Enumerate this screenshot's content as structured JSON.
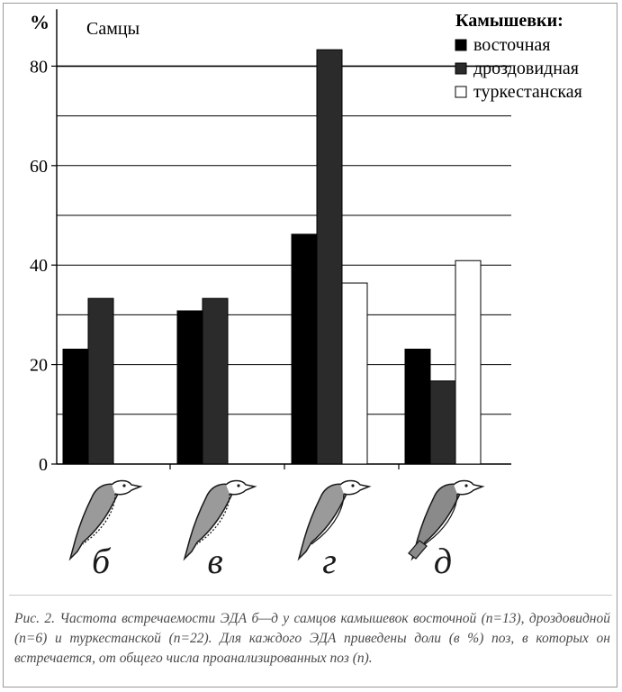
{
  "chart_data": {
    "type": "bar",
    "ylabel": "%",
    "subtitle": "Самцы",
    "legend_title": "Камышевки:",
    "legend_position": "top-right",
    "ylim": [
      0,
      90
    ],
    "yticks": [
      0,
      20,
      40,
      60,
      80
    ],
    "grid": true,
    "categories": [
      "б",
      "в",
      "г",
      "д"
    ],
    "series": [
      {
        "name": "восточная",
        "color": "#000000",
        "values": [
          23.1,
          30.8,
          46.2,
          23.1
        ]
      },
      {
        "name": "дроздовидная",
        "color": "#2b2b2b",
        "values": [
          33.3,
          33.3,
          83.3,
          16.7
        ]
      },
      {
        "name": "туркестанская",
        "color": "#ffffff",
        "values": [
          0,
          0,
          36.4,
          40.9
        ]
      }
    ]
  },
  "caption": "Рис. 2. Частота встречаемости ЭДА б—д у самцов камышевок восточной (n=13), дроздовидной (n=6) и туркестанской (n=22). Для каждого ЭДА приведены доли (в %) поз, в которых он встречается, от общего числа проанализированных поз (n)."
}
